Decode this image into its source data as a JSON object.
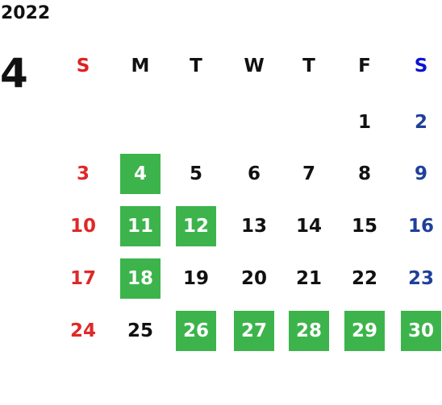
{
  "year": "2022",
  "month": "4",
  "weekdays": [
    "S",
    "M",
    "T",
    "W",
    "T",
    "F",
    "S"
  ],
  "weeks": [
    [
      null,
      null,
      null,
      null,
      null,
      {
        "day": 1
      },
      {
        "day": 2
      }
    ],
    [
      {
        "day": 3
      },
      {
        "day": 4,
        "highlight": true
      },
      {
        "day": 5
      },
      {
        "day": 6
      },
      {
        "day": 7
      },
      {
        "day": 8
      },
      {
        "day": 9
      }
    ],
    [
      {
        "day": 10
      },
      {
        "day": 11,
        "highlight": true
      },
      {
        "day": 12,
        "highlight": true
      },
      {
        "day": 13
      },
      {
        "day": 14
      },
      {
        "day": 15
      },
      {
        "day": 16
      }
    ],
    [
      {
        "day": 17
      },
      {
        "day": 18,
        "highlight": true
      },
      {
        "day": 19
      },
      {
        "day": 20
      },
      {
        "day": 21
      },
      {
        "day": 22
      },
      {
        "day": 23
      }
    ],
    [
      {
        "day": 24
      },
      {
        "day": 25
      },
      {
        "day": 26,
        "highlight": true
      },
      {
        "day": 27,
        "highlight": true
      },
      {
        "day": 28,
        "highlight": true
      },
      {
        "day": 29,
        "highlight": true
      },
      {
        "day": 30,
        "highlight": true
      }
    ]
  ]
}
